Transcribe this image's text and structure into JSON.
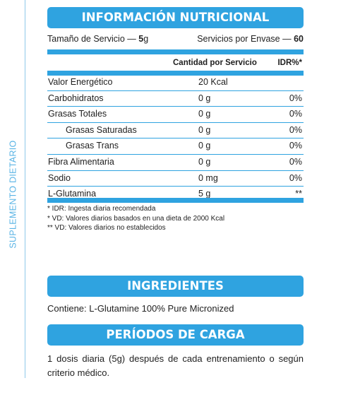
{
  "side_label": "SUPLEMENTO DIETARIO",
  "nutrition": {
    "title": "INFORMACIÓN NUTRICIONAL",
    "serving_size_label": "Tamaño de Servicio —",
    "serving_size_value": "5",
    "serving_size_unit": "g",
    "servings_label": "Servicios por Envase —",
    "servings_value": "60",
    "col_amount": "Cantidad por Servicio",
    "col_idr": "IDR%*",
    "rows": [
      {
        "name": "Valor Energético",
        "amount": "20 Kcal",
        "idr": ""
      },
      {
        "name": "Carbohidratos",
        "amount": "0 g",
        "idr": "0%"
      },
      {
        "name": "Grasas Totales",
        "amount": "0 g",
        "idr": "0%"
      },
      {
        "name": "Grasas Saturadas",
        "amount": "0 g",
        "idr": "0%"
      },
      {
        "name": "Grasas Trans",
        "amount": "0 g",
        "idr": "0%"
      },
      {
        "name": "Fibra Alimentaria",
        "amount": "0 g",
        "idr": "0%"
      },
      {
        "name": "Sodio",
        "amount": "0 mg",
        "idr": "0%"
      },
      {
        "name": "L-Glutamina",
        "amount": "5 g",
        "idr": "**"
      }
    ],
    "notes": [
      "* IDR: Ingesta diaria recomendada",
      "* VD: Valores diarios basados en una dieta de 2000 Kcal",
      "** VD: Valores diarios no establecidos"
    ]
  },
  "ingredients": {
    "title": "INGREDIENTES",
    "text": "Contiene: L-Glutamine 100% Pure Micronized"
  },
  "loading": {
    "title": "PERÍODOS DE CARGA",
    "text": "1 dosis diaria (5g) después de cada entrenamiento o según criterio médico."
  },
  "colors": {
    "accent": "#2fa3e0",
    "side_label": "#5ab4e5"
  }
}
